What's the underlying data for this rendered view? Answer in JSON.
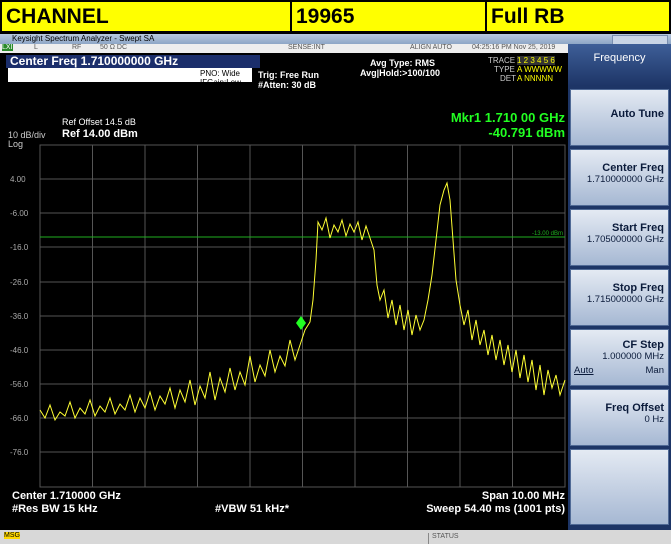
{
  "header": {
    "cells": [
      "CHANNEL",
      "19965",
      "Full RB"
    ]
  },
  "window": {
    "title": "Keysight Spectrum Analyzer - Swept SA"
  },
  "status_line": {
    "lxi": "LXI",
    "l": "L",
    "rf": "RF",
    "impedance": "50 Ω  DC",
    "sense": "SENSE:INT",
    "align": "ALIGN AUTO",
    "datetime": "04:25:16 PM Nov 25, 2019"
  },
  "settings": {
    "center_freq": "Center Freq 1.710000000 GHz",
    "pno": "PNO: Wide",
    "ifgain": "IFGain:Low",
    "trig": "Trig: Free Run",
    "atten": "#Atten: 30 dB",
    "avg_type": "Avg Type: RMS",
    "avg_hold": "Avg|Hold:>100/100",
    "trace_label": "TRACE",
    "trace_nums": "1 2 3 4 5 6",
    "type_label": "TYPE",
    "type_vals": "A WWWWW",
    "det_label": "DET",
    "det_vals": "A NNNNN"
  },
  "display": {
    "ref_offset": "Ref Offset 14.5 dB",
    "ref": "Ref 14.00 dBm",
    "scale": "10 dB/div",
    "log": "Log",
    "marker_freq": "Mkr1 1.710 00 GHz",
    "marker_level": "-40.791 dBm",
    "display_line": "-13.00 dBm",
    "y_labels": [
      "4.00",
      "-6.00",
      "-16.0",
      "-26.0",
      "-36.0",
      "-46.0",
      "-56.0",
      "-66.0",
      "-76.0"
    ]
  },
  "footer": {
    "center": "Center 1.710000 GHz",
    "span": "Span 10.00 MHz",
    "rbw": "#Res BW 15 kHz",
    "vbw": "#VBW 51 kHz*",
    "sweep": "Sweep  54.40 ms (1001 pts)"
  },
  "menu": {
    "title": "Frequency",
    "items": [
      {
        "label": "Auto Tune"
      },
      {
        "label": "Center Freq",
        "value": "1.710000000 GHz"
      },
      {
        "label": "Start Freq",
        "value": "1.705000000 GHz"
      },
      {
        "label": "Stop Freq",
        "value": "1.715000000 GHz"
      },
      {
        "label": "CF Step",
        "value": "1.000000 MHz",
        "auto": "Auto",
        "man": "Man"
      },
      {
        "label": "Freq Offset",
        "value": "0 Hz"
      }
    ]
  },
  "message_bar": {
    "msg": "MSG",
    "status": "STATUS"
  }
}
